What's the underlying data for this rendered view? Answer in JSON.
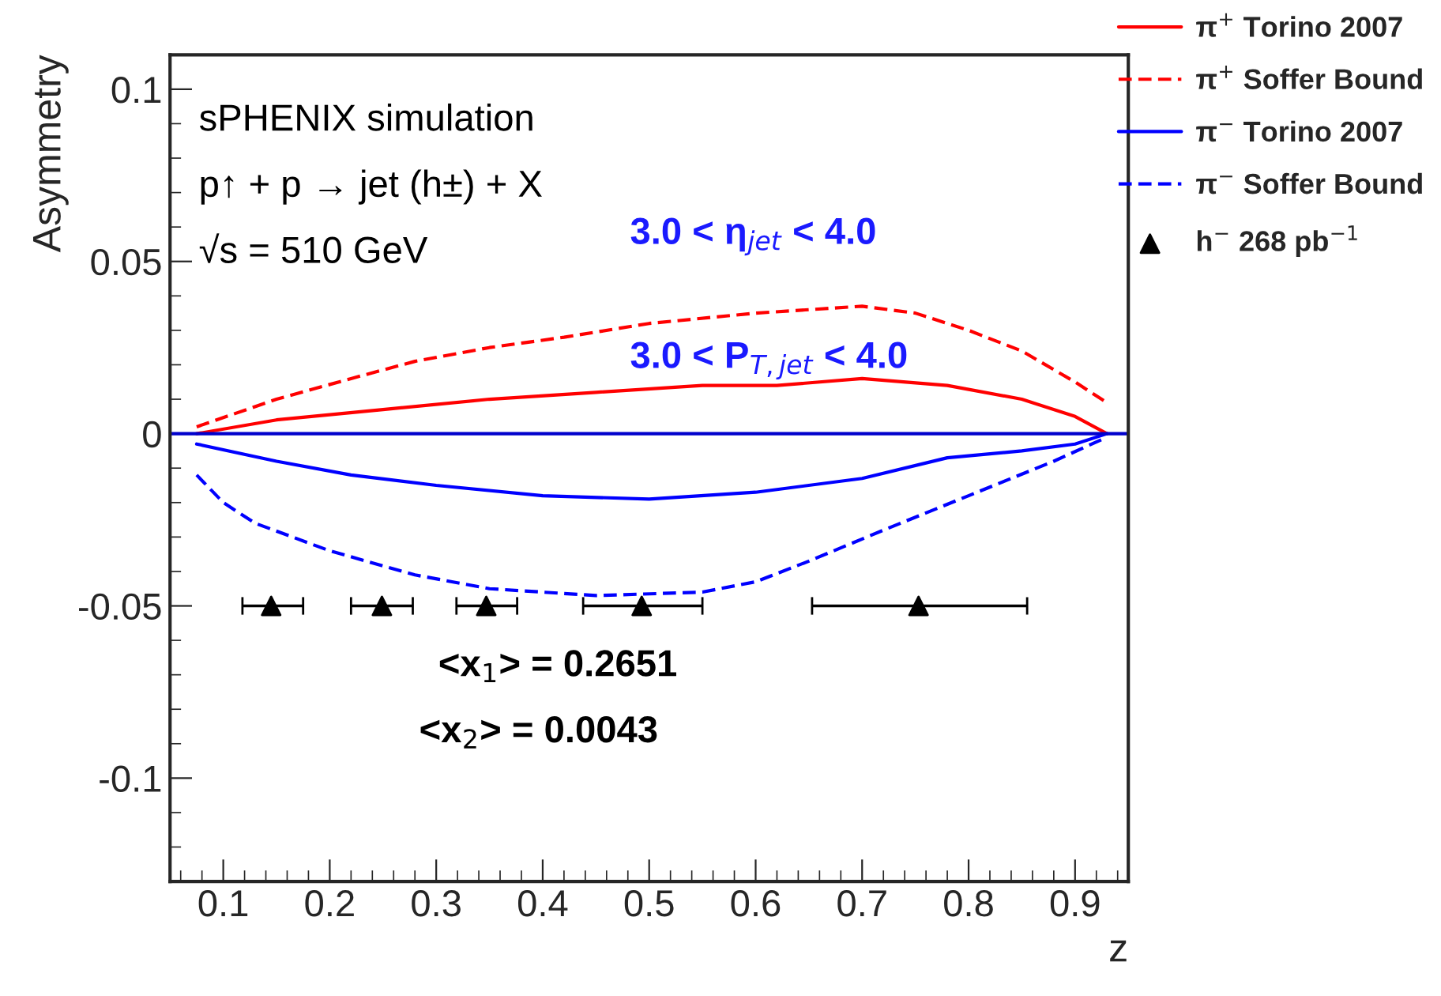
{
  "chart_data": {
    "type": "line",
    "xlabel": "z",
    "ylabel": "Asymmetry",
    "xlim": [
      0.05,
      0.95
    ],
    "ylim": [
      -0.13,
      0.11
    ],
    "xticks": [
      0.1,
      0.2,
      0.3,
      0.4,
      0.5,
      0.6,
      0.7,
      0.8,
      0.9
    ],
    "yticks": [
      -0.1,
      -0.05,
      0,
      0.05,
      0.1
    ],
    "grid": false,
    "legend": "top right",
    "ref_lines": [
      {
        "axis": "y",
        "value": 0,
        "color": "#0000cc"
      }
    ],
    "annotations": [
      "sPHENIX simulation",
      "p↑ + p → jet (h±) + X",
      "√s = 510 GeV",
      "3.0 < η$_{jet}$ < 4.0",
      "3.0 < P$_{T,jet}$ < 4.0",
      "<x$_{1}$> = 0.2651",
      "<x$_{2}$> = 0.0043"
    ],
    "series": [
      {
        "name": "π$^{+}$ Torino 2007",
        "color": "#ff0000",
        "line_style": "solid",
        "x": [
          0.075,
          0.15,
          0.25,
          0.35,
          0.45,
          0.55,
          0.62,
          0.7,
          0.78,
          0.85,
          0.9,
          0.93
        ],
        "values": [
          0,
          0.004,
          0.007,
          0.01,
          0.012,
          0.014,
          0.014,
          0.016,
          0.014,
          0.01,
          0.005,
          0
        ]
      },
      {
        "name": "π$^{+}$ Soffer Bound",
        "color": "#ff0000",
        "line_style": "dashed",
        "x": [
          0.075,
          0.15,
          0.22,
          0.28,
          0.35,
          0.42,
          0.5,
          0.6,
          0.7,
          0.75,
          0.8,
          0.85,
          0.9,
          0.93
        ],
        "values": [
          0.002,
          0.01,
          0.016,
          0.021,
          0.025,
          0.028,
          0.032,
          0.035,
          0.037,
          0.035,
          0.03,
          0.024,
          0.015,
          0.009
        ]
      },
      {
        "name": "π$^{−}$ Torino 2007",
        "color": "#0000ff",
        "line_style": "solid",
        "x": [
          0.075,
          0.15,
          0.22,
          0.3,
          0.4,
          0.5,
          0.6,
          0.7,
          0.78,
          0.85,
          0.9,
          0.93
        ],
        "values": [
          -0.003,
          -0.008,
          -0.012,
          -0.015,
          -0.018,
          -0.019,
          -0.017,
          -0.013,
          -0.007,
          -0.005,
          -0.003,
          0
        ]
      },
      {
        "name": "π$^{−}$ Soffer Bound",
        "color": "#0000ff",
        "line_style": "dashed",
        "x": [
          0.075,
          0.1,
          0.13,
          0.2,
          0.28,
          0.35,
          0.45,
          0.55,
          0.6,
          0.65,
          0.72,
          0.8,
          0.88,
          0.93
        ],
        "values": [
          -0.012,
          -0.02,
          -0.026,
          -0.034,
          -0.041,
          -0.045,
          -0.047,
          -0.046,
          -0.043,
          -0.037,
          -0.028,
          -0.018,
          -0.008,
          -0.001
        ]
      },
      {
        "name": "h$^{−}$ 268 pb$^{−1}$",
        "type": "scatter",
        "marker": "triangle",
        "color": "#000000",
        "x": [
          0.145,
          0.249,
          0.347,
          0.493,
          0.753
        ],
        "values": [
          -0.05,
          -0.05,
          -0.05,
          -0.05,
          -0.05
        ],
        "xerrors": [
          [
            0.118,
            0.175
          ],
          [
            0.22,
            0.278
          ],
          [
            0.319,
            0.376
          ],
          [
            0.438,
            0.55
          ],
          [
            0.653,
            0.855
          ]
        ]
      }
    ]
  }
}
